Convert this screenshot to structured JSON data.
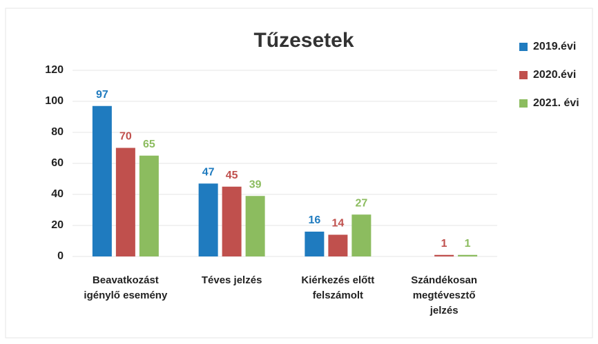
{
  "chart_data": {
    "type": "bar",
    "title": "Tűzesetek",
    "categories": [
      "Beavatkozást igénylő esemény",
      "Téves jelzés",
      "Kiérkezés előtt felszámolt",
      "Szándékosan megtévesztő jelzés"
    ],
    "series": [
      {
        "name": "2019.évi",
        "color": "#1f7bbf",
        "values": [
          97,
          47,
          16,
          null
        ]
      },
      {
        "name": "2020.évi",
        "color": "#c0504d",
        "values": [
          70,
          45,
          14,
          1
        ]
      },
      {
        "name": "2021. évi",
        "color": "#8cbc5f",
        "values": [
          65,
          39,
          27,
          1
        ]
      }
    ],
    "ylim": [
      0,
      120
    ],
    "yticks": [
      0,
      20,
      40,
      60,
      80,
      100,
      120
    ],
    "grid": true,
    "legend": "right"
  }
}
